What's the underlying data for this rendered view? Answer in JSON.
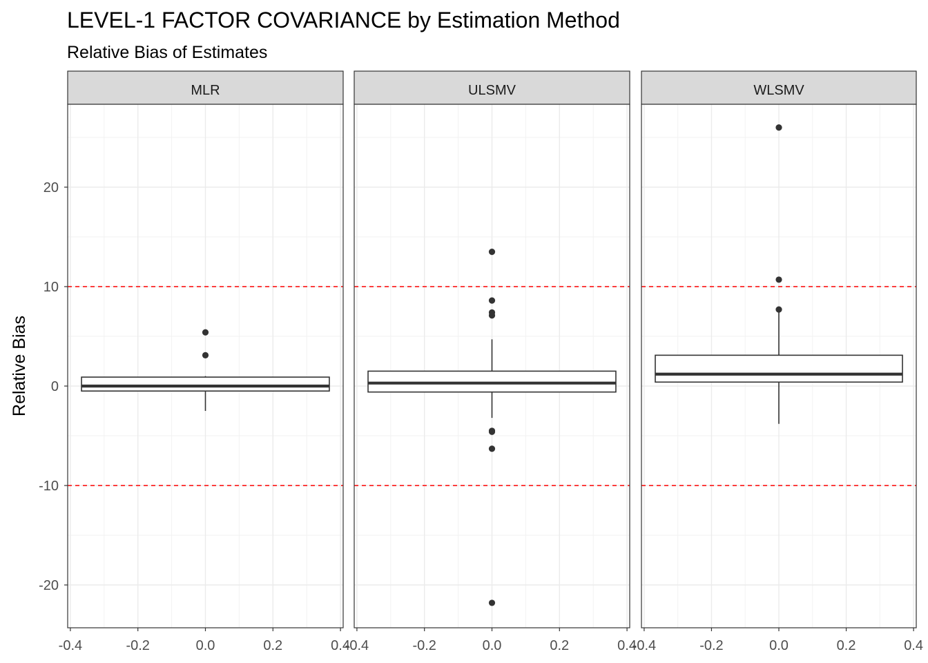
{
  "chart_data": {
    "type": "box",
    "title": "LEVEL-1 FACTOR COVARIANCE by Estimation Method",
    "subtitle": "Relative Bias of Estimates",
    "ylabel": "Relative Bias",
    "xlabel": "",
    "xlim": [
      -0.4,
      0.4
    ],
    "ylim": [
      -24.2,
      28.4
    ],
    "x_ticks": [
      "-0.4",
      "-0.2",
      "0.0",
      "0.2",
      "0.4"
    ],
    "x_tick_values": [
      -0.4,
      -0.2,
      0.0,
      0.2,
      0.4
    ],
    "y_ticks": [
      "-20",
      "-10",
      "0",
      "10",
      "20"
    ],
    "y_tick_values": [
      -20,
      -10,
      0,
      10,
      20
    ],
    "reference_lines": [
      10,
      -10
    ],
    "reference_line_color": "#ff0000",
    "grid": true,
    "facets": [
      {
        "name": "MLR",
        "box": {
          "q1": -0.5,
          "median": 0.0,
          "q3": 0.9,
          "whisker_low": -2.5,
          "whisker_high": 1.0
        },
        "outliers": [
          5.4,
          3.1
        ]
      },
      {
        "name": "ULSMV",
        "box": {
          "q1": -0.6,
          "median": 0.3,
          "q3": 1.5,
          "whisker_low": -3.2,
          "whisker_high": 4.7
        },
        "outliers": [
          13.5,
          8.6,
          7.4,
          7.1,
          -4.5,
          -4.6,
          -6.3,
          -21.8
        ]
      },
      {
        "name": "WLSMV",
        "box": {
          "q1": 0.4,
          "median": 1.2,
          "q3": 3.1,
          "whisker_low": -3.8,
          "whisker_high": 7.6
        },
        "outliers": [
          26.0,
          10.7,
          7.7
        ]
      }
    ]
  }
}
